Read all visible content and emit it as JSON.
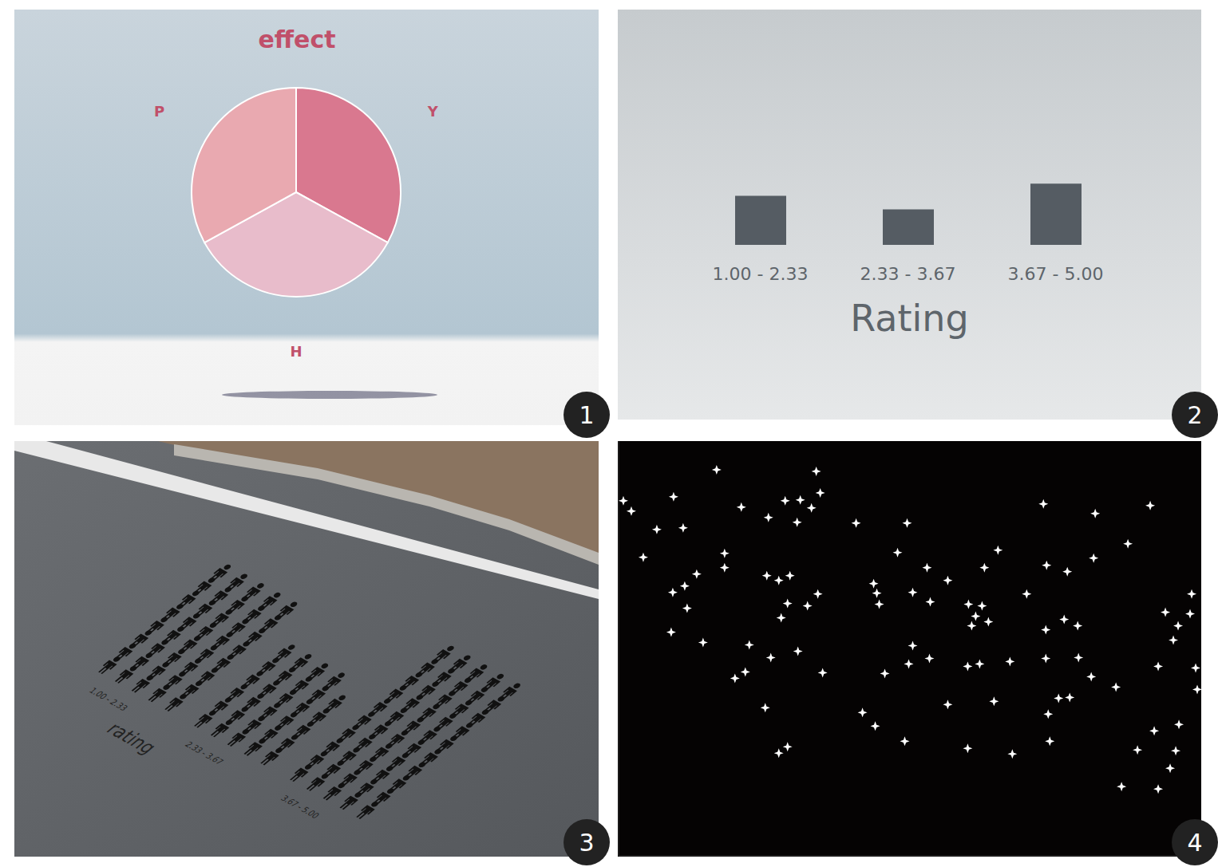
{
  "chart_data": [
    {
      "type": "pie",
      "title": "effect",
      "categories": [
        "Y",
        "H",
        "P"
      ],
      "values": [
        33,
        34,
        33
      ],
      "colors": [
        "#d9788f",
        "#e8bccb",
        "#e9a9b0"
      ],
      "annotations": [
        "1"
      ]
    },
    {
      "type": "bar",
      "xlabel": "Rating",
      "categories": [
        "1.00 - 2.33",
        "2.33 - 3.67",
        "3.67 - 5.00"
      ],
      "values": [
        40,
        29,
        50
      ],
      "color": "#555c63",
      "ylim": [
        0,
        125
      ],
      "tick_labels": "x",
      "annotations": [
        "2"
      ]
    },
    {
      "type": "pictograph",
      "xlabel": "rating",
      "categories": [
        "1.00 - 2.33",
        "2.33 - 3.67",
        "3.67 - 5.00"
      ],
      "values": [
        40,
        29,
        50
      ],
      "color": "#111111",
      "annotations": [
        "3"
      ]
    },
    {
      "type": "scatter",
      "x": [
        6,
        16,
        69,
        123,
        248,
        253,
        81,
        48,
        154,
        188,
        209,
        228,
        242,
        224,
        31,
        133,
        133,
        98,
        68,
        83,
        186,
        201,
        215,
        250,
        212,
        204,
        237,
        86,
        66,
        106,
        298,
        362,
        350,
        387,
        413,
        320,
        324,
        327,
        369,
        391,
        476,
        459,
        439,
        456,
        512,
        533,
        598,
        667,
        639,
        596,
        537,
        563,
        536,
        559,
        576,
        719,
        717,
        686,
        702,
        696,
        677,
        726,
        724,
        164,
        191,
        225,
        369,
        364,
        390,
        334,
        438,
        453,
        491,
        536,
        577,
        593,
        146,
        159,
        256,
        443,
        448,
        464,
        184,
        306,
        322,
        359,
        471,
        413,
        539,
        552,
        566,
        624,
        541,
        438,
        494,
        201,
        212,
        651,
        672,
        703,
        699,
        692,
        631,
        677
      ],
      "values": [
        446,
        433,
        451,
        485,
        483,
        456,
        412,
        410,
        438,
        425,
        446,
        447,
        437,
        419,
        375,
        380,
        362,
        354,
        331,
        339,
        352,
        346,
        352,
        329,
        317,
        299,
        314,
        311,
        281,
        268,
        418,
        418,
        381,
        362,
        346,
        342,
        330,
        316,
        331,
        319,
        384,
        362,
        316,
        314,
        329,
        442,
        430,
        440,
        392,
        374,
        365,
        357,
        284,
        297,
        289,
        329,
        304,
        306,
        289,
        271,
        238,
        209,
        236,
        265,
        249,
        257,
        264,
        241,
        248,
        229,
        238,
        241,
        244,
        248,
        249,
        225,
        223,
        231,
        230,
        289,
        301,
        294,
        186,
        180,
        163,
        144,
        194,
        190,
        178,
        198,
        199,
        212,
        144,
        135,
        128,
        129,
        137,
        133,
        157,
        165,
        132,
        110,
        87,
        84
      ],
      "xlim": [
        0,
        731
      ],
      "ylim": [
        0,
        521
      ],
      "tick_labels": false,
      "color": "#ffffff",
      "marker": "star",
      "annotations": [
        "4"
      ]
    }
  ]
}
